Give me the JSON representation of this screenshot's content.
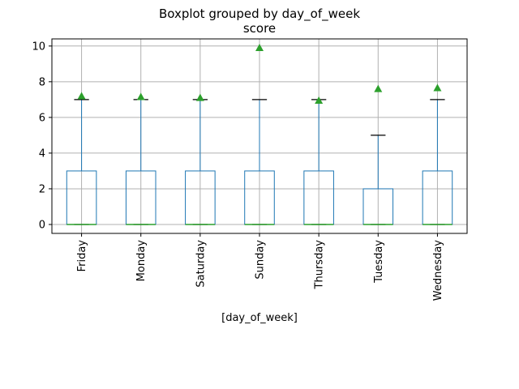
{
  "chart_data": {
    "type": "boxplot",
    "title": "Boxplot grouped by day_of_week",
    "subtitle": "score",
    "xlabel": "[day_of_week]",
    "ylabel": "",
    "ylim": [
      -0.5,
      10.4
    ],
    "yticks": [
      0,
      2,
      4,
      6,
      8,
      10
    ],
    "grid": true,
    "categories": [
      "Friday",
      "Monday",
      "Saturday",
      "Sunday",
      "Thursday",
      "Tuesday",
      "Wednesday"
    ],
    "boxes": [
      {
        "min": 0,
        "q1": 0,
        "median": 0,
        "q3": 3,
        "max": 7,
        "mean": 7.2
      },
      {
        "min": 0,
        "q1": 0,
        "median": 0,
        "q3": 3,
        "max": 7,
        "mean": 7.15
      },
      {
        "min": 0,
        "q1": 0,
        "median": 0,
        "q3": 3,
        "max": 7,
        "mean": 7.1
      },
      {
        "min": 0,
        "q1": 0,
        "median": 0,
        "q3": 3,
        "max": 7,
        "mean": 9.9
      },
      {
        "min": 0,
        "q1": 0,
        "median": 0,
        "q3": 3,
        "max": 7,
        "mean": 6.95
      },
      {
        "min": 0,
        "q1": 0,
        "median": 0,
        "q3": 2,
        "max": 5,
        "mean": 7.6
      },
      {
        "min": 0,
        "q1": 0,
        "median": 0,
        "q3": 3,
        "max": 7,
        "mean": 7.65
      }
    ],
    "colors": {
      "box": "#1f77b4",
      "median": "#2ca02c",
      "mean_marker": "#2ca02c",
      "whisker_cap": "#000000",
      "grid": "#b0b0b0"
    }
  }
}
